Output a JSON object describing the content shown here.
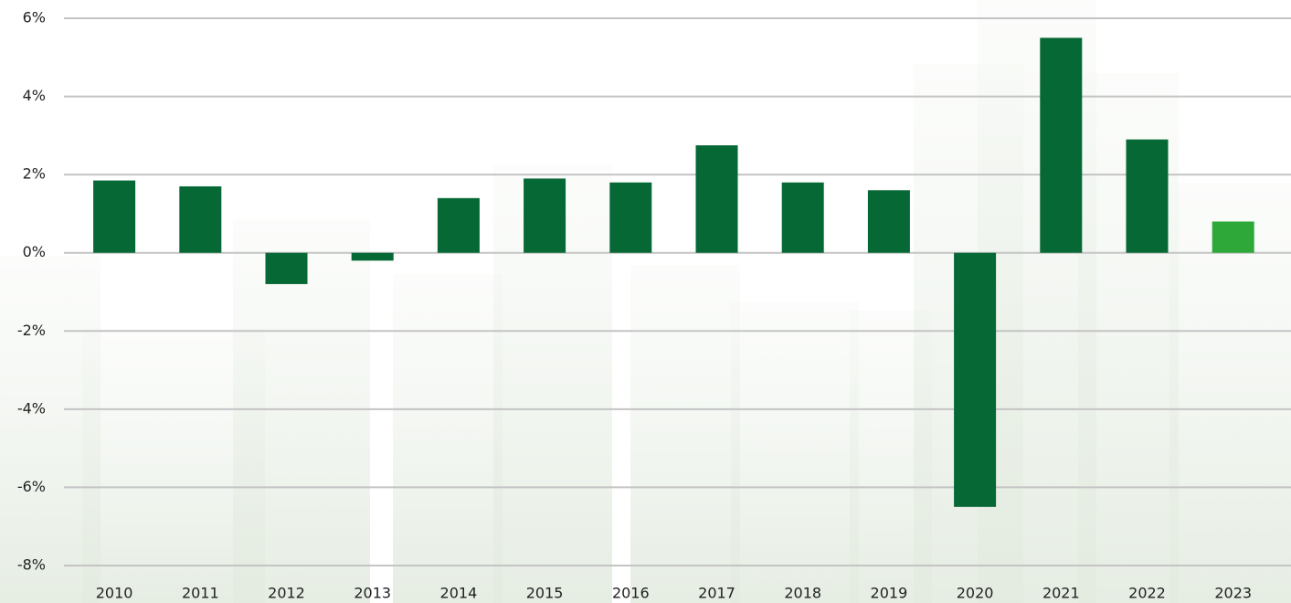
{
  "chart_data": {
    "type": "bar",
    "categories": [
      "2010",
      "2011",
      "2012",
      "2013",
      "2014",
      "2015",
      "2016",
      "2017",
      "2018",
      "2019",
      "2020",
      "2021",
      "2022",
      "2023"
    ],
    "values": [
      1.85,
      1.7,
      -0.8,
      -0.2,
      1.4,
      1.9,
      1.8,
      2.75,
      1.8,
      1.6,
      -6.5,
      5.5,
      2.9,
      0.8
    ],
    "colors": [
      "#066835",
      "#066835",
      "#066835",
      "#066835",
      "#066835",
      "#066835",
      "#066835",
      "#066835",
      "#066835",
      "#066835",
      "#066835",
      "#066835",
      "#066835",
      "#2fa83a"
    ],
    "ylim": [
      -8,
      6
    ],
    "yticks": [
      {
        "value": -8,
        "label": "-8%"
      },
      {
        "value": -6,
        "label": "-6%"
      },
      {
        "value": -4,
        "label": "-4%"
      },
      {
        "value": -2,
        "label": "-2%"
      },
      {
        "value": 0,
        "label": "0%"
      },
      {
        "value": 2,
        "label": "2%"
      },
      {
        "value": 4,
        "label": "4%"
      },
      {
        "value": 6,
        "label": "6%"
      }
    ],
    "grid": true
  }
}
